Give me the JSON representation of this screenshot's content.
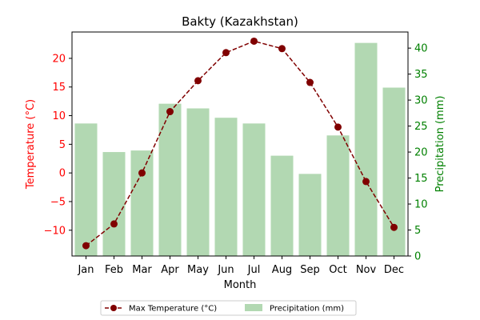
{
  "chart_data": {
    "type": "bar",
    "title": "Bakty (Kazakhstan)",
    "xlabel": "Month",
    "categories": [
      "Jan",
      "Feb",
      "Mar",
      "Apr",
      "May",
      "Jun",
      "Jul",
      "Aug",
      "Sep",
      "Oct",
      "Nov",
      "Dec"
    ],
    "series": [
      {
        "name": "Max Temperature (°C)",
        "type": "line",
        "axis": "left",
        "color": "#800000",
        "style": "dashed line with circle markers",
        "values": [
          -12.7,
          -8.9,
          0.0,
          10.7,
          16.1,
          21.0,
          23.0,
          21.7,
          15.8,
          8.0,
          -1.5,
          -9.5
        ]
      },
      {
        "name": "Precipitation (mm)",
        "type": "bar",
        "axis": "right",
        "color": "#b2d8b2",
        "values": [
          25.5,
          20.0,
          20.3,
          29.3,
          28.4,
          26.6,
          25.5,
          19.3,
          15.8,
          23.2,
          41.0,
          32.4
        ]
      }
    ],
    "left_axis": {
      "label": "Temperature (°C)",
      "color": "#ff0000",
      "ylim": [
        -14.5,
        24.6
      ],
      "ticks": [
        -10,
        -5,
        0,
        5,
        10,
        15,
        20
      ],
      "tick_labels": [
        "−10",
        "−5",
        "0",
        "5",
        "10",
        "15",
        "20"
      ]
    },
    "right_axis": {
      "label": "Precipitation (mm)",
      "color": "#008000",
      "ylim": [
        0,
        43.1
      ],
      "ticks": [
        0,
        5,
        10,
        15,
        20,
        25,
        30,
        35,
        40
      ],
      "tick_labels": [
        "0",
        "5",
        "10",
        "15",
        "20",
        "25",
        "30",
        "35",
        "40"
      ]
    },
    "grid": false,
    "legend_position": "bottom-center"
  }
}
